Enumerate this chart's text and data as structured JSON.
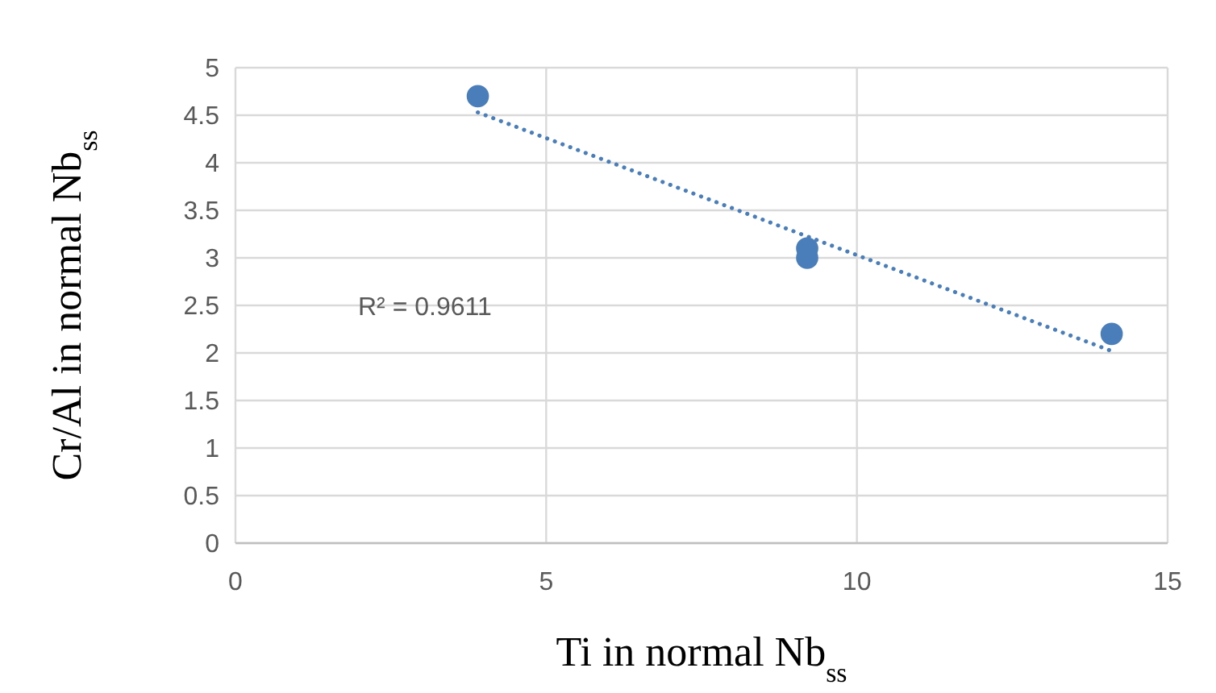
{
  "chart_data": {
    "type": "scatter",
    "xlabel": "Ti in normal Nb$_{ss}$",
    "ylabel": "Cr/Al in normal Nb$_{ss}$",
    "xlim": [
      0,
      15
    ],
    "xticks": [
      0,
      5,
      10,
      15
    ],
    "ylim": [
      0,
      5
    ],
    "yticks": [
      0,
      0.5,
      1,
      1.5,
      2,
      2.5,
      3,
      3.5,
      4,
      4.5,
      5
    ],
    "grid": true,
    "marker": "circle",
    "series": [
      {
        "color": "#4a7ebb",
        "x": [
          3.9,
          9.2,
          9.2,
          14.1
        ],
        "values": [
          4.7,
          3.1,
          3.0,
          2.2
        ]
      },
      {
        "type": "line",
        "color": "#4a7ebb",
        "marker": "none",
        "line_style": "dotted",
        "x": [
          3.9,
          14.1
        ],
        "values": [
          4.53,
          2.02
        ]
      }
    ],
    "annotations": [
      "R² = 0.9611"
    ]
  }
}
